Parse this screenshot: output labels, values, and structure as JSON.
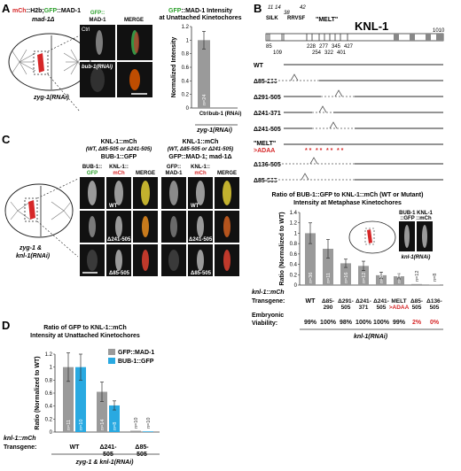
{
  "panel_a": {
    "letter": "A",
    "label_mch": "mCh",
    "label_h2b": "::H2b;",
    "label_gfp": "GFP",
    "label_mad1": "::MAD-1",
    "label_mad1d": "mad-1Δ",
    "label_zyg": "zyg-1(RNAi)",
    "col_gfp_top": "GFP::",
    "col_gfp_bottom": "MAD-1",
    "col_merge": "MERGE",
    "row1": "Ctrl",
    "row2": "bub-1(RNAi)",
    "chart_title_gfp": "GFP",
    "chart_title_rest": "::MAD-1 Intensity",
    "chart_subtitle": "at Unattached Kinetochores"
  },
  "panel_b": {
    "letter": "B",
    "protein": "KNL-1",
    "motifs_top": [
      "11",
      "14",
      "38",
      "42"
    ],
    "motif_silk": "SILK",
    "motif_rrvsf": "RRVSF",
    "motif_melt": "\"MELT\"",
    "pos_row1": [
      "85",
      "228",
      "277",
      "345",
      "427"
    ],
    "pos_row2": [
      "109",
      "254",
      "322",
      "401"
    ],
    "end": "1010",
    "rows": [
      "WT",
      "Δ85-290",
      "Δ291-505",
      "Δ241-371",
      "Δ241-505",
      "\"MELT\"",
      "Δ136-505",
      "Δ85-505"
    ],
    "melt_sub": ">ADAA"
  },
  "panel_c": {
    "letter": "C",
    "left_title": "KNL-1::mCh",
    "left_sub": "(WT, Δ85-505 or Δ241-505)",
    "left_sub2": "BUB-1::GFP",
    "right_title": "KNL-1::mCh",
    "right_sub": "(WT, Δ85-505 or Δ241-505)",
    "right_sub2": "GFP::MAD-1; mad-1Δ",
    "col_l1a": "BUB-1::",
    "col_l1b": "GFP",
    "col_l2a": "KNL-1::",
    "col_l2b": "mCh",
    "col_l3": "MERGE",
    "col_r1a": "GFP::",
    "col_r1b": "MAD-1",
    "col_r2a": "KNL-1::",
    "col_r2b": "mCh",
    "col_r3": "MERGE",
    "row_labels": [
      "WT",
      "Δ241-505",
      "Δ85-505"
    ],
    "cell_label_1": "zyg-1 &",
    "cell_label_2": "knl-1(RNAi)",
    "ratio_title_1": "Ratio of BUB-1::GFP to KNL-1::mCh (WT or Mutant)",
    "ratio_title_2": "Intensity at Metaphase Kinetochores",
    "inset_l1": "BUB-1 KNL-1",
    "inset_l2": "::GFP ::mCh",
    "inset_l3": "knl-1(RNAi)",
    "row_transgene": "Transgene:",
    "row_knl1": "knl-1::mCh",
    "row_viability_1": "Embryonic",
    "row_viability_2": "Viability:",
    "bottom": "knl-1(RNAi)"
  },
  "panel_d": {
    "letter": "D",
    "title_1": "Ratio of GFP to KNL-1::mCh",
    "title_2": "Intensity at Unattached Kinetochores",
    "row_knl1": "knl-1::mCh",
    "row_transgene": "Transgene:",
    "bottom": "zyg-1 & knl-1(RNAi)"
  },
  "colors": {
    "gray_bar": "#9a9a9a",
    "blue_bar": "#29a9e1",
    "red": "#d62728",
    "green": "#2ca02c"
  },
  "chart_data": [
    {
      "type": "bar",
      "panel": "A",
      "title": "GFP::MAD-1 Intensity at Unattached Kinetochores",
      "ylabel": "Normalized Intensity",
      "ylim": [
        0,
        1.2
      ],
      "yticks": [
        "0",
        "0.2",
        "0.4",
        "0.6",
        "0.8",
        "1",
        "1.2"
      ],
      "categories": [
        "Ctrl",
        "bub-1 (RNAi)"
      ],
      "values": [
        1.0,
        0.01
      ],
      "errors": [
        0.13,
        0.0
      ],
      "n_labels": [
        "n=24",
        "n=10"
      ],
      "group_label": "zyg-1(RNAi)"
    },
    {
      "type": "bar",
      "panel": "C",
      "ylabel": "Ratio (Normalized to WT)",
      "ylim": [
        0,
        1.4
      ],
      "yticks": [
        "0",
        "0.2",
        "0.4",
        "0.6",
        "0.8",
        "1",
        "1.2",
        "1.4"
      ],
      "categories": [
        "WT",
        "Δ85-290",
        "Δ291-505",
        "Δ241-371",
        "Δ241-505",
        "MELT >ADAA",
        "Δ85-505",
        "Δ136-505"
      ],
      "values": [
        1.0,
        0.7,
        0.42,
        0.37,
        0.19,
        0.17,
        0.02,
        0.01
      ],
      "errors": [
        0.2,
        0.18,
        0.08,
        0.09,
        0.06,
        0.05,
        0.0,
        0.0
      ],
      "n_labels": [
        "n=36",
        "n=11",
        "n=16",
        "n=12",
        "n=8",
        "n=16",
        "n=12",
        "n=8"
      ],
      "viability": [
        "99%",
        "100%",
        "98%",
        "100%",
        "100%",
        "99%",
        "2%",
        "0%"
      ]
    },
    {
      "type": "bar",
      "panel": "D",
      "ylabel": "Ratio (Normalized to WT)",
      "ylim": [
        0,
        1.2
      ],
      "yticks": [
        "0",
        "0.2",
        "0.4",
        "0.6",
        "0.8",
        "1",
        "1.2"
      ],
      "categories": [
        "WT",
        "Δ241-505",
        "Δ85-505"
      ],
      "series": [
        {
          "name": "GFP::MAD-1",
          "values": [
            1.0,
            0.62,
            0.02
          ],
          "errors": [
            0.22,
            0.15,
            0.0
          ],
          "n": [
            "n=11",
            "n=14",
            "n=10"
          ]
        },
        {
          "name": "BUB-1::GFP",
          "values": [
            1.0,
            0.41,
            0.01
          ],
          "errors": [
            0.2,
            0.07,
            0.0
          ],
          "n": [
            "n=10",
            "n=8",
            "n=10"
          ]
        }
      ]
    }
  ]
}
